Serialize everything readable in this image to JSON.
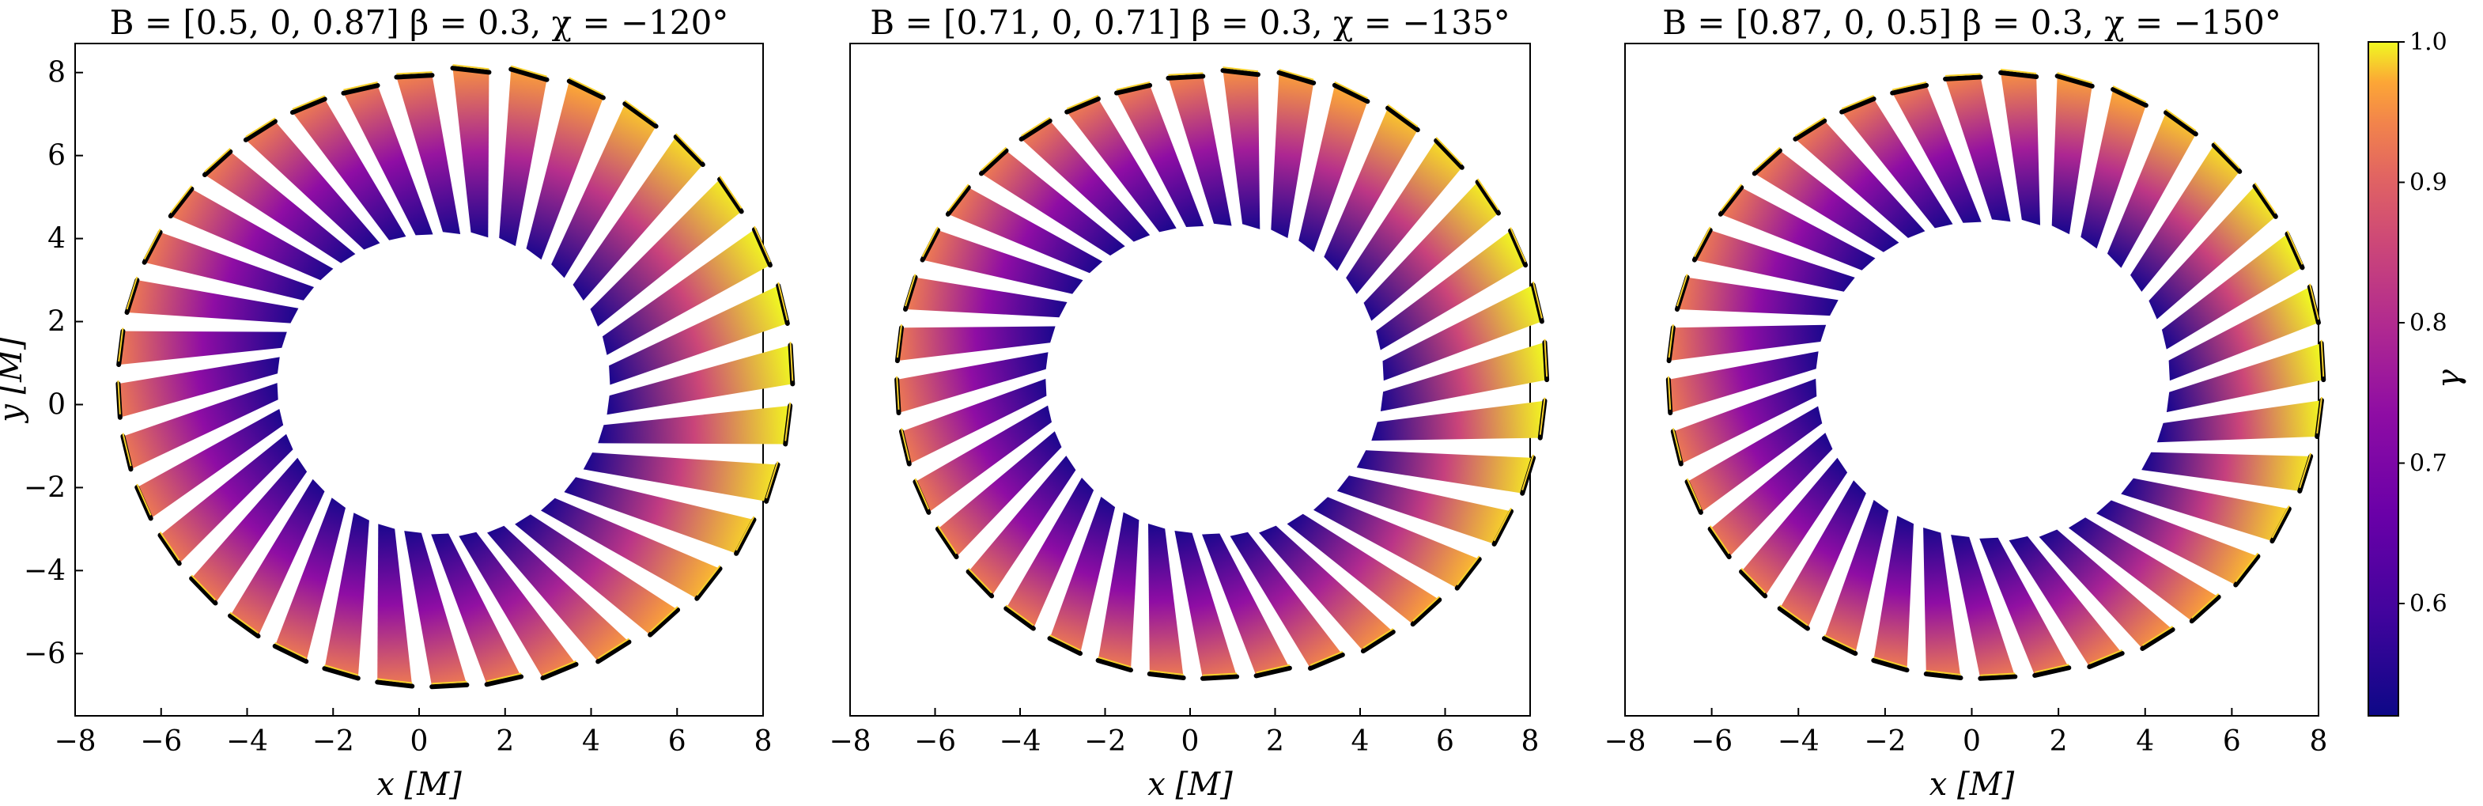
{
  "chart_data": [
    {
      "type": "scatter",
      "title": "B = [0.5, 0, 0.87] β = 0.3, χ = −120°",
      "xlabel": "x [M]",
      "ylabel": "y [M]",
      "xlim": [
        -8,
        8
      ],
      "ylim": [
        -7.5,
        8.7
      ],
      "xticks": [
        -8,
        -6,
        -4,
        -2,
        0,
        2,
        4,
        6,
        8
      ],
      "xtick_labels": [
        "−8",
        "−6",
        "−4",
        "−2",
        "0",
        "2",
        "4",
        "6",
        "8"
      ],
      "yticks": [
        -6,
        -4,
        -2,
        0,
        2,
        4,
        6,
        8
      ],
      "ytick_labels": [
        "−6",
        "−4",
        "−2",
        "0",
        "2",
        "4",
        "6",
        "8"
      ],
      "ring": {
        "inner_radius": 3.6,
        "outer_radius": 7.3,
        "count": 36,
        "center": [
          0.3,
          0.5
        ],
        "skew_right": 0.6
      },
      "grid": false
    },
    {
      "type": "scatter",
      "title": "B = [0.71, 0, 0.71] β = 0.3, χ = −135°",
      "xlabel": "x [M]",
      "ylabel": "",
      "xlim": [
        -8,
        8
      ],
      "ylim": [
        -7.5,
        8.7
      ],
      "xticks": [
        -8,
        -6,
        -4,
        -2,
        0,
        2,
        4,
        6,
        8
      ],
      "xtick_labels": [
        "−8",
        "−6",
        "−4",
        "−2",
        "0",
        "2",
        "4",
        "6",
        "8"
      ],
      "yticks": [],
      "ytick_labels": [],
      "ring": {
        "inner_radius": 3.7,
        "outer_radius": 7.2,
        "count": 36,
        "center": [
          0.3,
          0.6
        ],
        "skew_right": 0.5
      },
      "grid": false
    },
    {
      "type": "scatter",
      "title": "B = [0.87, 0, 0.5] β = 0.3, χ = −150°",
      "xlabel": "x [M]",
      "ylabel": "",
      "xlim": [
        -8,
        8
      ],
      "ylim": [
        -7.5,
        8.7
      ],
      "xticks": [
        -8,
        -6,
        -4,
        -2,
        0,
        2,
        4,
        6,
        8
      ],
      "xtick_labels": [
        "−8",
        "−6",
        "−4",
        "−2",
        "0",
        "2",
        "4",
        "6",
        "8"
      ],
      "yticks": [],
      "ytick_labels": [],
      "ring": {
        "inner_radius": 3.8,
        "outer_radius": 7.2,
        "count": 36,
        "center": [
          0.2,
          0.6
        ],
        "skew_right": 0.4
      },
      "grid": false
    }
  ],
  "colorbar": {
    "label": "γ",
    "min": 0.52,
    "max": 1.0,
    "ticks": [
      0.6,
      0.7,
      0.8,
      0.9,
      1.0
    ],
    "tick_labels": [
      "0.6",
      "0.7",
      "0.8",
      "0.9",
      "1.0"
    ],
    "colormap": "plasma"
  }
}
